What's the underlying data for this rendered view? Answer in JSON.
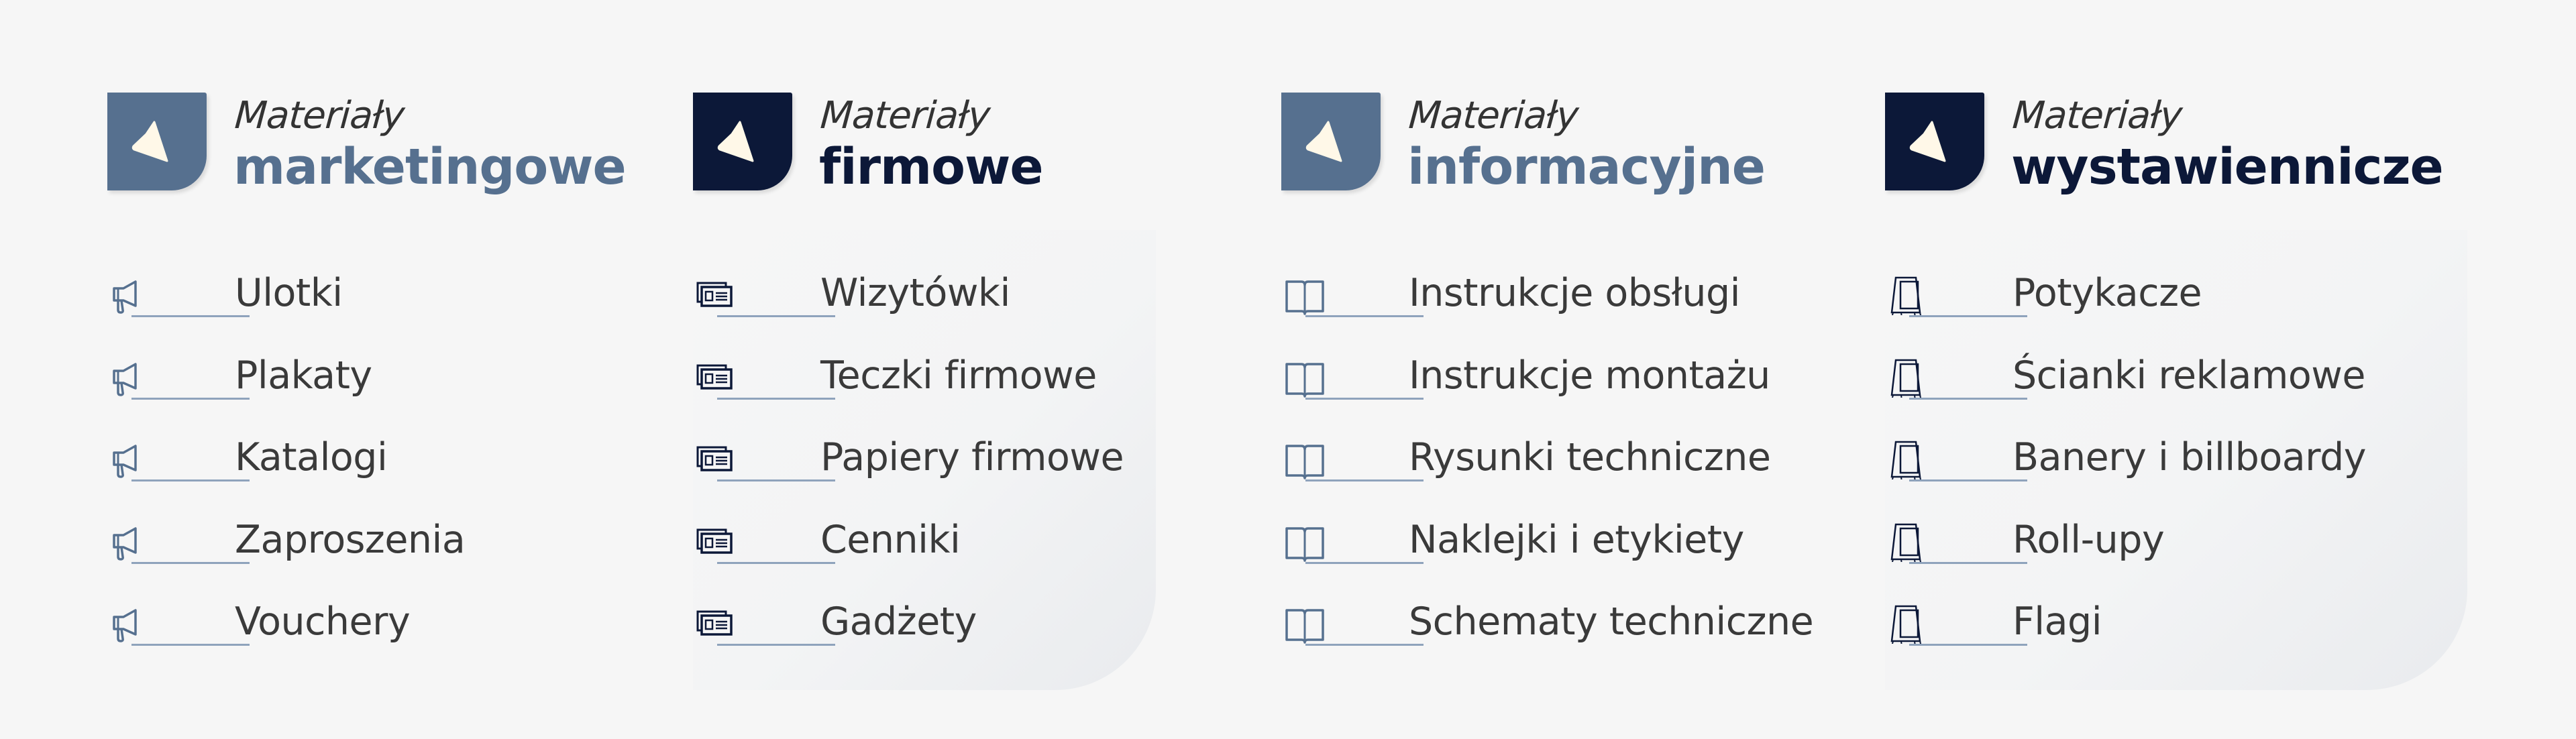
{
  "colors": {
    "slate_blue": "#56708f",
    "navy": "#0c1838",
    "cream": "#fff8e8",
    "text": "#3a3a3a",
    "underline": "#8fa3bc"
  },
  "columns": [
    {
      "subtitle": "Materiały",
      "title": "marketingowe",
      "color": "#56708f",
      "icon": "megaphone-icon",
      "panel": false,
      "items": [
        "Ulotki",
        "Plakaty",
        "Katalogi",
        "Zaproszenia",
        "Vouchery"
      ]
    },
    {
      "subtitle": "Materiały",
      "title": "firmowe",
      "color": "#0c1838",
      "icon": "business-card-icon",
      "panel": true,
      "items": [
        "Wizytówki",
        "Teczki firmowe",
        "Papiery firmowe",
        "Cenniki",
        "Gadżety"
      ]
    },
    {
      "subtitle": "Materiały",
      "title": "informacyjne",
      "color": "#56708f",
      "icon": "open-book-icon",
      "panel": false,
      "items": [
        "Instrukcje obsługi",
        "Instrukcje montażu",
        "Rysunki techniczne",
        "Naklejki i etykiety",
        "Schematy techniczne"
      ]
    },
    {
      "subtitle": "Materiały",
      "title": "wystawiennicze",
      "color": "#0c1838",
      "icon": "a-frame-stand-icon",
      "panel": true,
      "items": [
        "Potykacze",
        "Ścianki reklamowe",
        "Banery i billboardy",
        "Roll-upy",
        "Flagi"
      ]
    }
  ]
}
